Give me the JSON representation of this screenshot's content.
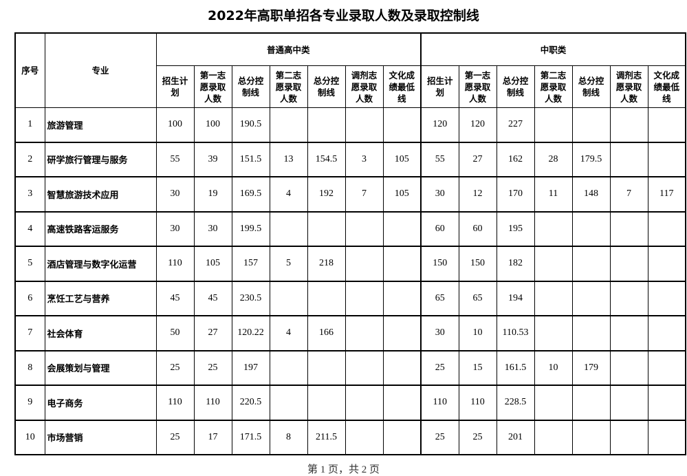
{
  "title": "2022年高职单招各专业录取人数及录取控制线",
  "headers": {
    "seq": "序号",
    "major": "专业",
    "group_a": "普通高中类",
    "group_b": "中职类",
    "cols": [
      "招生计划",
      "第一志愿录取人数",
      "总分控制线",
      "第二志愿录取人数",
      "总分控制线",
      "调剂志愿录取人数",
      "文化成绩最低线"
    ]
  },
  "rows": [
    {
      "seq": "1",
      "major": "旅游管理",
      "a": [
        "100",
        "100",
        "190.5",
        "",
        "",
        "",
        ""
      ],
      "b": [
        "120",
        "120",
        "227",
        "",
        "",
        "",
        ""
      ]
    },
    {
      "seq": "2",
      "major": "研学旅行管理与服务",
      "a": [
        "55",
        "39",
        "151.5",
        "13",
        "154.5",
        "3",
        "105"
      ],
      "b": [
        "55",
        "27",
        "162",
        "28",
        "179.5",
        "",
        ""
      ]
    },
    {
      "seq": "3",
      "major": "智慧旅游技术应用",
      "a": [
        "30",
        "19",
        "169.5",
        "4",
        "192",
        "7",
        "105"
      ],
      "b": [
        "30",
        "12",
        "170",
        "11",
        "148",
        "7",
        "117"
      ]
    },
    {
      "seq": "4",
      "major": "高速铁路客运服务",
      "a": [
        "30",
        "30",
        "199.5",
        "",
        "",
        "",
        ""
      ],
      "b": [
        "60",
        "60",
        "195",
        "",
        "",
        "",
        ""
      ]
    },
    {
      "seq": "5",
      "major": "酒店管理与数字化运营",
      "a": [
        "110",
        "105",
        "157",
        "5",
        "218",
        "",
        ""
      ],
      "b": [
        "150",
        "150",
        "182",
        "",
        "",
        "",
        ""
      ]
    },
    {
      "seq": "6",
      "major": "烹饪工艺与营养",
      "a": [
        "45",
        "45",
        "230.5",
        "",
        "",
        "",
        ""
      ],
      "b": [
        "65",
        "65",
        "194",
        "",
        "",
        "",
        ""
      ]
    },
    {
      "seq": "7",
      "major": "社会体育",
      "a": [
        "50",
        "27",
        "120.22",
        "4",
        "166",
        "",
        ""
      ],
      "b": [
        "30",
        "10",
        "110.53",
        "",
        "",
        "",
        ""
      ]
    },
    {
      "seq": "8",
      "major": "会展策划与管理",
      "a": [
        "25",
        "25",
        "197",
        "",
        "",
        "",
        ""
      ],
      "b": [
        "25",
        "15",
        "161.5",
        "10",
        "179",
        "",
        ""
      ]
    },
    {
      "seq": "9",
      "major": "电子商务",
      "a": [
        "110",
        "110",
        "220.5",
        "",
        "",
        "",
        ""
      ],
      "b": [
        "110",
        "110",
        "228.5",
        "",
        "",
        "",
        ""
      ]
    },
    {
      "seq": "10",
      "major": "市场营销",
      "a": [
        "25",
        "17",
        "171.5",
        "8",
        "211.5",
        "",
        ""
      ],
      "b": [
        "25",
        "25",
        "201",
        "",
        "",
        "",
        ""
      ]
    }
  ],
  "footer": "第 1 页，共 2 页"
}
